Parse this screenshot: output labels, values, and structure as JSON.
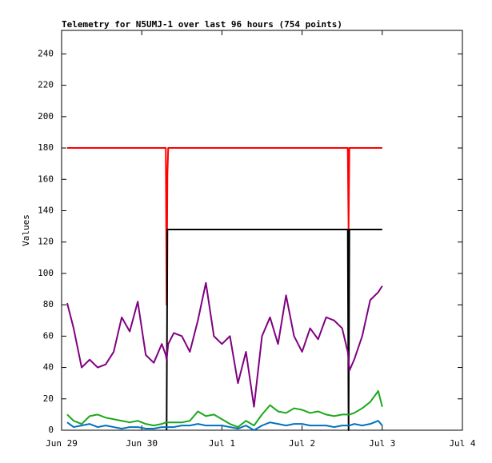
{
  "chart_data": {
    "type": "line",
    "title": "Telemetry for N5UMJ-1 over last 96 hours (754 points)",
    "y_label": "Values",
    "x": [
      0.07,
      0.15,
      0.25,
      0.35,
      0.45,
      0.55,
      0.65,
      0.75,
      0.85,
      0.95,
      1.05,
      1.15,
      1.25,
      1.3,
      1.31,
      1.32,
      1.33,
      1.4,
      1.5,
      1.6,
      1.7,
      1.8,
      1.9,
      2.0,
      2.1,
      2.2,
      2.3,
      2.4,
      2.5,
      2.6,
      2.7,
      2.8,
      2.9,
      3.0,
      3.1,
      3.2,
      3.3,
      3.4,
      3.5,
      3.57,
      3.58,
      3.59,
      3.65,
      3.75,
      3.85,
      3.95,
      4.0
    ],
    "series": [
      {
        "color": "#ff0000",
        "values": [
          180,
          180,
          180,
          180,
          180,
          180,
          180,
          180,
          180,
          180,
          180,
          180,
          180,
          180,
          80,
          163,
          180,
          180,
          180,
          180,
          180,
          180,
          180,
          180,
          180,
          180,
          180,
          180,
          180,
          180,
          180,
          180,
          180,
          180,
          180,
          180,
          180,
          180,
          180,
          180,
          128,
          180,
          180,
          180,
          180,
          180,
          180
        ]
      },
      {
        "color": "#000000",
        "values": [
          null,
          null,
          null,
          null,
          null,
          null,
          null,
          null,
          null,
          null,
          null,
          null,
          null,
          null,
          0,
          128,
          128,
          128,
          128,
          128,
          128,
          128,
          128,
          128,
          128,
          128,
          128,
          128,
          128,
          128,
          128,
          128,
          128,
          128,
          128,
          128,
          128,
          128,
          128,
          128,
          0,
          128,
          128,
          128,
          128,
          128,
          128
        ]
      },
      {
        "color": "#800080",
        "values": [
          81,
          65,
          40,
          45,
          40,
          42,
          50,
          72,
          63,
          82,
          48,
          43,
          55,
          48,
          45,
          50,
          55,
          62,
          60,
          50,
          70,
          94,
          60,
          55,
          60,
          30,
          50,
          15,
          60,
          72,
          55,
          86,
          60,
          50,
          65,
          58,
          72,
          70,
          65,
          50,
          45,
          38,
          45,
          60,
          83,
          88,
          92
        ]
      },
      {
        "color": "#1aa81a",
        "values": [
          10,
          6,
          4,
          9,
          10,
          8,
          7,
          6,
          5,
          6,
          4,
          3,
          4,
          5,
          5,
          5,
          5,
          5,
          5,
          6,
          12,
          9,
          10,
          7,
          4,
          2,
          6,
          3,
          10,
          16,
          12,
          11,
          14,
          13,
          11,
          12,
          10,
          9,
          10,
          10,
          10,
          10,
          11,
          14,
          18,
          25,
          15
        ]
      },
      {
        "color": "#0070c0",
        "values": [
          5,
          2,
          3,
          4,
          2,
          3,
          2,
          1,
          2,
          2,
          1,
          1,
          2,
          2,
          2,
          2,
          2,
          2,
          3,
          3,
          4,
          3,
          3,
          3,
          2,
          1,
          3,
          0,
          3,
          5,
          4,
          3,
          4,
          4,
          3,
          3,
          3,
          2,
          3,
          3,
          3,
          3,
          4,
          3,
          4,
          6,
          3
        ]
      }
    ],
    "xlim": [
      0,
      5
    ],
    "xticks": [
      {
        "value": 0,
        "label": "Jun 29"
      },
      {
        "value": 1,
        "label": "Jun 30"
      },
      {
        "value": 2,
        "label": "Jul 1"
      },
      {
        "value": 3,
        "label": "Jul 2"
      },
      {
        "value": 4,
        "label": "Jul 3"
      },
      {
        "value": 5,
        "label": "Jul 4"
      }
    ],
    "ylim": [
      0,
      255
    ],
    "yticks": [
      0,
      20,
      40,
      60,
      80,
      100,
      120,
      140,
      160,
      180,
      200,
      220,
      240
    ],
    "grid": false
  }
}
